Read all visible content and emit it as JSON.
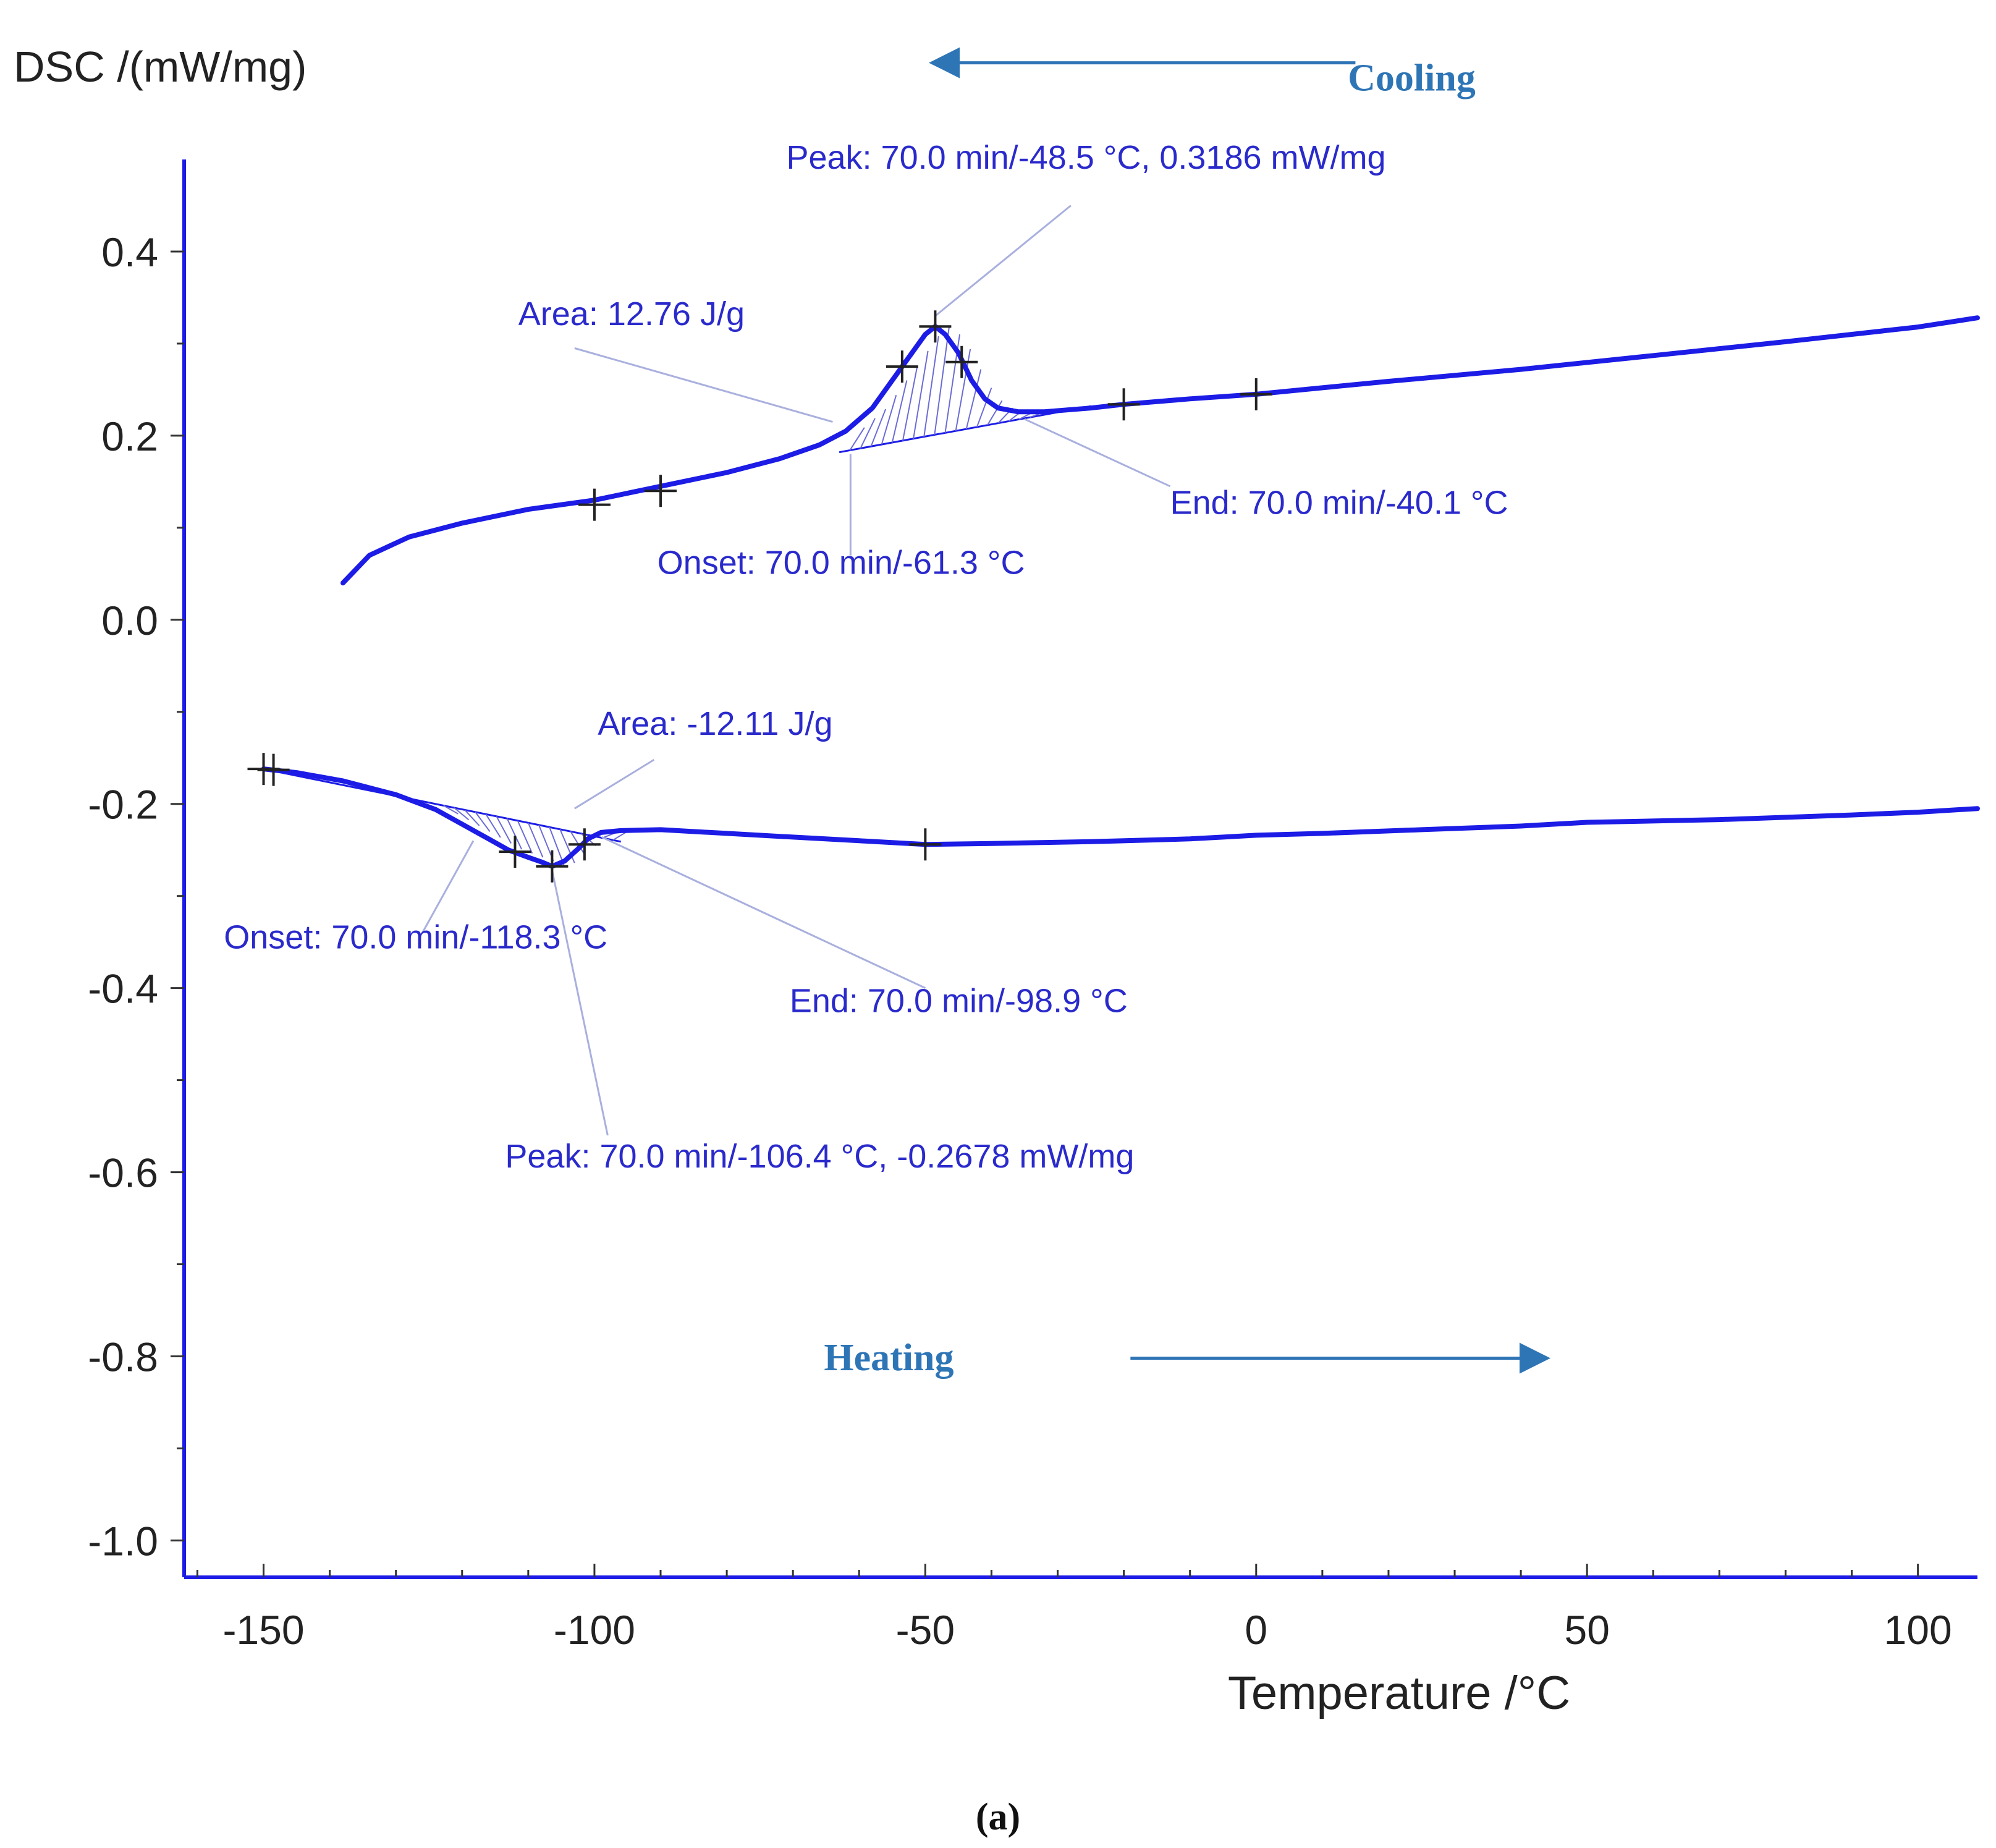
{
  "chart_data": {
    "type": "line",
    "ylabel": "DSC /(mW/mg)",
    "xlabel": "Temperature /°C",
    "caption": "(a)",
    "xlim": [
      -162,
      109
    ],
    "ylim": [
      -1.04,
      0.5
    ],
    "xticks": [
      -150,
      -100,
      -50,
      0,
      50,
      100
    ],
    "xtick_labels": [
      "-150",
      "-100",
      "-50",
      "0",
      "50",
      "100"
    ],
    "yticks": [
      0.4,
      0.2,
      0.0,
      -0.2,
      -0.4,
      -0.6,
      -0.8,
      -1.0
    ],
    "ytick_labels": [
      "0.4",
      "0.2",
      "0.0",
      "-0.2",
      "-0.4",
      "-0.6",
      "-0.8",
      "-1.0"
    ],
    "line_color": "#1c1ce6",
    "annotation_color": "#2a2acc",
    "direction_color": "#2e75b6",
    "series": [
      {
        "name": "Cooling",
        "x": [
          -138,
          -134,
          -128,
          -120,
          -110,
          -100,
          -90,
          -80,
          -72,
          -66,
          -62,
          -58,
          -55,
          -52,
          -50,
          -48.5,
          -47,
          -45,
          -43,
          -41,
          -39,
          -36,
          -32,
          -25,
          -20,
          -10,
          0,
          10,
          20,
          40,
          60,
          80,
          100,
          109
        ],
        "y": [
          0.04,
          0.07,
          0.09,
          0.105,
          0.12,
          0.13,
          0.145,
          0.16,
          0.175,
          0.19,
          0.205,
          0.23,
          0.26,
          0.29,
          0.31,
          0.3186,
          0.31,
          0.29,
          0.26,
          0.24,
          0.23,
          0.226,
          0.226,
          0.23,
          0.234,
          0.24,
          0.245,
          0.252,
          0.259,
          0.272,
          0.287,
          0.302,
          0.318,
          0.328
        ]
      },
      {
        "name": "Heating",
        "x": [
          -150,
          -145,
          -138,
          -130,
          -124,
          -120,
          -116,
          -113,
          -110,
          -108,
          -106.4,
          -104.5,
          -102.5,
          -101,
          -99,
          -96,
          -90,
          -80,
          -70,
          -60,
          -50,
          -40,
          -25,
          -10,
          -5,
          0,
          10,
          25,
          40,
          50,
          70,
          90,
          100,
          109
        ],
        "y": [
          -0.162,
          -0.166,
          -0.175,
          -0.19,
          -0.206,
          -0.222,
          -0.238,
          -0.25,
          -0.258,
          -0.263,
          -0.2678,
          -0.262,
          -0.249,
          -0.238,
          -0.231,
          -0.229,
          -0.228,
          -0.232,
          -0.236,
          -0.24,
          -0.244,
          -0.243,
          -0.241,
          -0.238,
          -0.236,
          -0.234,
          -0.232,
          -0.228,
          -0.224,
          -0.22,
          -0.217,
          -0.212,
          -0.209,
          -0.205
        ]
      }
    ],
    "cooling_baseline": {
      "x": [
        -63,
        -25
      ],
      "y": [
        0.182,
        0.232
      ]
    },
    "heating_baseline": {
      "x": [
        -150,
        -96
      ],
      "y": [
        -0.162,
        -0.241
      ]
    },
    "markers": [
      {
        "x": -100,
        "y": 0.125
      },
      {
        "x": -90,
        "y": 0.14
      },
      {
        "x": -53.5,
        "y": 0.275
      },
      {
        "x": -48.5,
        "y": 0.3186
      },
      {
        "x": -44.5,
        "y": 0.28
      },
      {
        "x": -20,
        "y": 0.234
      },
      {
        "x": 0,
        "y": 0.245
      },
      {
        "x": -150,
        "y": -0.162
      },
      {
        "x": -148.5,
        "y": -0.163
      },
      {
        "x": -112,
        "y": -0.252
      },
      {
        "x": -106.4,
        "y": -0.2678
      },
      {
        "x": -101.5,
        "y": -0.244
      },
      {
        "x": -50,
        "y": -0.244
      }
    ],
    "annotations": [
      {
        "text": "Peak: 70.0 min/-48.5 °C, 0.3186 mW/mg",
        "tx": -71,
        "ty": 0.49,
        "lx1": -28,
        "ly1": 0.45,
        "lx2": -48.5,
        "ly2": 0.33
      },
      {
        "text": "Area: 12.76 J/g",
        "tx": -111.5,
        "ty": 0.32,
        "lx1": -103,
        "ly1": 0.295,
        "lx2": -64,
        "ly2": 0.215
      },
      {
        "text": "Onset: 70.0 min/-61.3 °C",
        "tx": -90.5,
        "ty": 0.05,
        "lx1": -61.3,
        "ly1": 0.07,
        "lx2": -61.3,
        "ly2": 0.18
      },
      {
        "text": "End: 70.0 min/-40.1 °C",
        "tx": -13,
        "ty": 0.115,
        "lx1": -13,
        "ly1": 0.145,
        "lx2": -35,
        "ly2": 0.218
      },
      {
        "text": "Area: -12.11 J/g",
        "tx": -99.5,
        "ty": -0.125,
        "lx1": -91,
        "ly1": -0.152,
        "lx2": -103,
        "ly2": -0.205
      },
      {
        "text": "Onset: 70.0 min/-118.3 °C",
        "tx": -156,
        "ty": -0.357,
        "lx1": -126,
        "ly1": -0.34,
        "lx2": -118.3,
        "ly2": -0.24
      },
      {
        "text": "End: 70.0 min/-98.9 °C",
        "tx": -70.5,
        "ty": -0.426,
        "lx1": -50,
        "ly1": -0.4,
        "lx2": -98.9,
        "ly2": -0.236
      },
      {
        "text": "Peak: 70.0 min/-106.4 °C, -0.2678 mW/mg",
        "tx": -113.5,
        "ty": -0.595,
        "lx1": -98,
        "ly1": -0.56,
        "lx2": -106.4,
        "ly2": -0.272
      }
    ],
    "direction_labels": [
      {
        "text": "Cooling",
        "x": 23.5,
        "y": 0.575,
        "arrow_from": 15,
        "arrow_to": -49,
        "arrow_y": 0.605
      },
      {
        "text": "Heating",
        "x": -55.5,
        "y": -0.815,
        "arrow_from": -19,
        "arrow_to": 44,
        "arrow_y": -0.802
      }
    ]
  }
}
